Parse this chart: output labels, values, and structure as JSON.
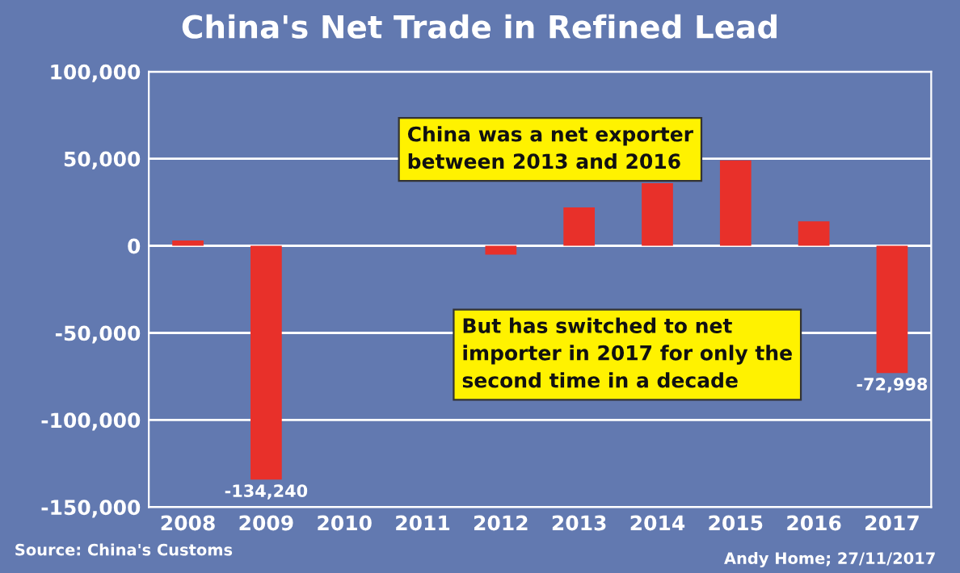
{
  "chart_data": {
    "type": "bar",
    "title": "China's Net Trade in Refined Lead",
    "categories": [
      "2008",
      "2009",
      "2010",
      "2011",
      "2012",
      "2013",
      "2014",
      "2015",
      "2016",
      "2017"
    ],
    "values": [
      3000,
      -134240,
      null,
      null,
      -5000,
      22000,
      36000,
      49000,
      14000,
      -72998
    ],
    "value_labels": [
      null,
      "-134,240",
      null,
      null,
      null,
      null,
      null,
      null,
      null,
      "-72,998"
    ],
    "color": "#e8302a",
    "ylim": [
      -150000,
      100000
    ],
    "yticks": [
      {
        "value": -150000,
        "label": "-150,000"
      },
      {
        "value": -100000,
        "label": "-100,000"
      },
      {
        "value": -50000,
        "label": "-50,000"
      },
      0,
      {
        "value": 50000,
        "label": "50,000"
      },
      {
        "value": 100000,
        "label": "100,000"
      }
    ],
    "grid": "y",
    "annotations": [
      "China was a net exporter\nbetween 2013 and 2016",
      "But has switched to net\nimporter in 2017 for only the\nsecond time in a decade",
      "Source: China's Customs",
      "Andy Home; 27/11/2017"
    ]
  }
}
